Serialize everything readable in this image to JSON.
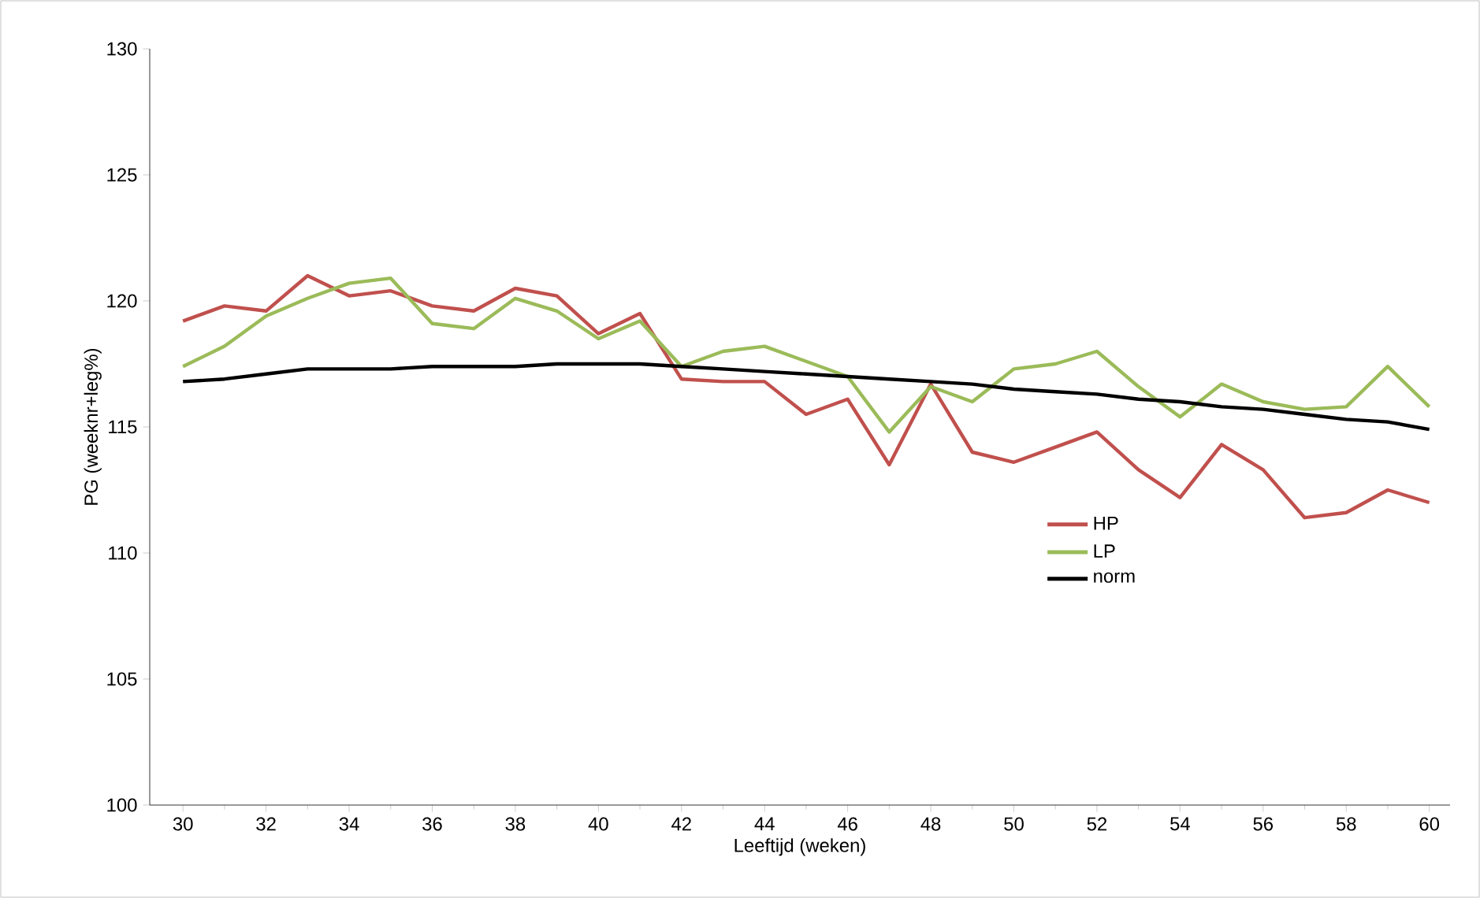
{
  "chart_data": {
    "type": "line",
    "xlabel": "Leeftijd (weken)",
    "ylabel": "PG (weeknr+leg%)",
    "x": [
      30,
      31,
      32,
      33,
      34,
      35,
      36,
      37,
      38,
      39,
      40,
      41,
      42,
      43,
      44,
      45,
      46,
      47,
      48,
      49,
      50,
      51,
      52,
      53,
      54,
      55,
      56,
      57,
      58,
      59,
      60
    ],
    "series": [
      {
        "name": "HP",
        "color": "#c0504d",
        "values": [
          119.2,
          119.8,
          119.6,
          121.0,
          120.2,
          120.4,
          119.8,
          119.6,
          120.5,
          120.2,
          118.7,
          119.5,
          116.9,
          116.8,
          116.8,
          115.5,
          116.1,
          113.5,
          116.7,
          114.0,
          113.6,
          114.2,
          114.8,
          113.3,
          112.2,
          114.3,
          113.3,
          111.4,
          111.6,
          112.5,
          112.0
        ]
      },
      {
        "name": "LP",
        "color": "#9bbb59",
        "values": [
          117.4,
          118.2,
          119.4,
          120.1,
          120.7,
          120.9,
          119.1,
          118.9,
          120.1,
          119.6,
          118.5,
          119.2,
          117.4,
          118.0,
          118.2,
          117.6,
          117.0,
          114.8,
          116.6,
          116.0,
          117.3,
          117.5,
          118.0,
          116.6,
          115.4,
          116.7,
          116.0,
          115.7,
          115.8,
          117.4,
          115.8
        ]
      },
      {
        "name": "norm",
        "color": "#000000",
        "values": [
          116.8,
          116.9,
          117.1,
          117.3,
          117.3,
          117.3,
          117.4,
          117.4,
          117.4,
          117.5,
          117.5,
          117.5,
          117.4,
          117.3,
          117.2,
          117.1,
          117.0,
          116.9,
          116.8,
          116.7,
          116.5,
          116.4,
          116.3,
          116.1,
          116.0,
          115.8,
          115.7,
          115.5,
          115.3,
          115.2,
          114.9
        ]
      }
    ],
    "xlim": [
      29.2,
      60.5
    ],
    "ylim": [
      100,
      130
    ],
    "xticks": [
      30,
      32,
      34,
      36,
      38,
      40,
      42,
      44,
      46,
      48,
      50,
      52,
      54,
      56,
      58,
      60
    ],
    "yticks": [
      100,
      105,
      110,
      115,
      120,
      125,
      130
    ],
    "grid": false,
    "legend": "right",
    "marker": "none",
    "line_style": "solid"
  }
}
